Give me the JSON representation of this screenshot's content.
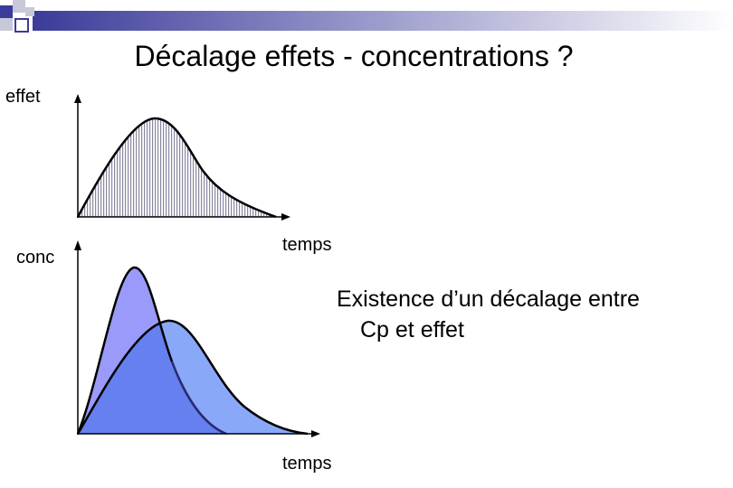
{
  "slide": {
    "title": "Décalage effets - concentrations ?",
    "note_line1": "Existence d’un décalage entre",
    "note_line2": "Cp et effet"
  },
  "top_graph": {
    "ylabel": "effet",
    "xlabel": "temps"
  },
  "bottom_graph": {
    "ylabel": "conc",
    "xlabel": "temps"
  },
  "colors": {
    "title_bar_gradient_start": "#3b3b9a",
    "title_bar_gradient_end": "#ffffff",
    "decor_blue": "#3b3b9a",
    "decor_light": "#c8c8d8",
    "effect_fill": "#c8c8d8",
    "curve_fast_fill": "#9a9afa",
    "curve_slow_fill": "#8aa8f8",
    "overlap_fill": "#6680f0",
    "curve_stroke": "#000000",
    "fast_stroke_lower": "#2a2a70"
  }
}
